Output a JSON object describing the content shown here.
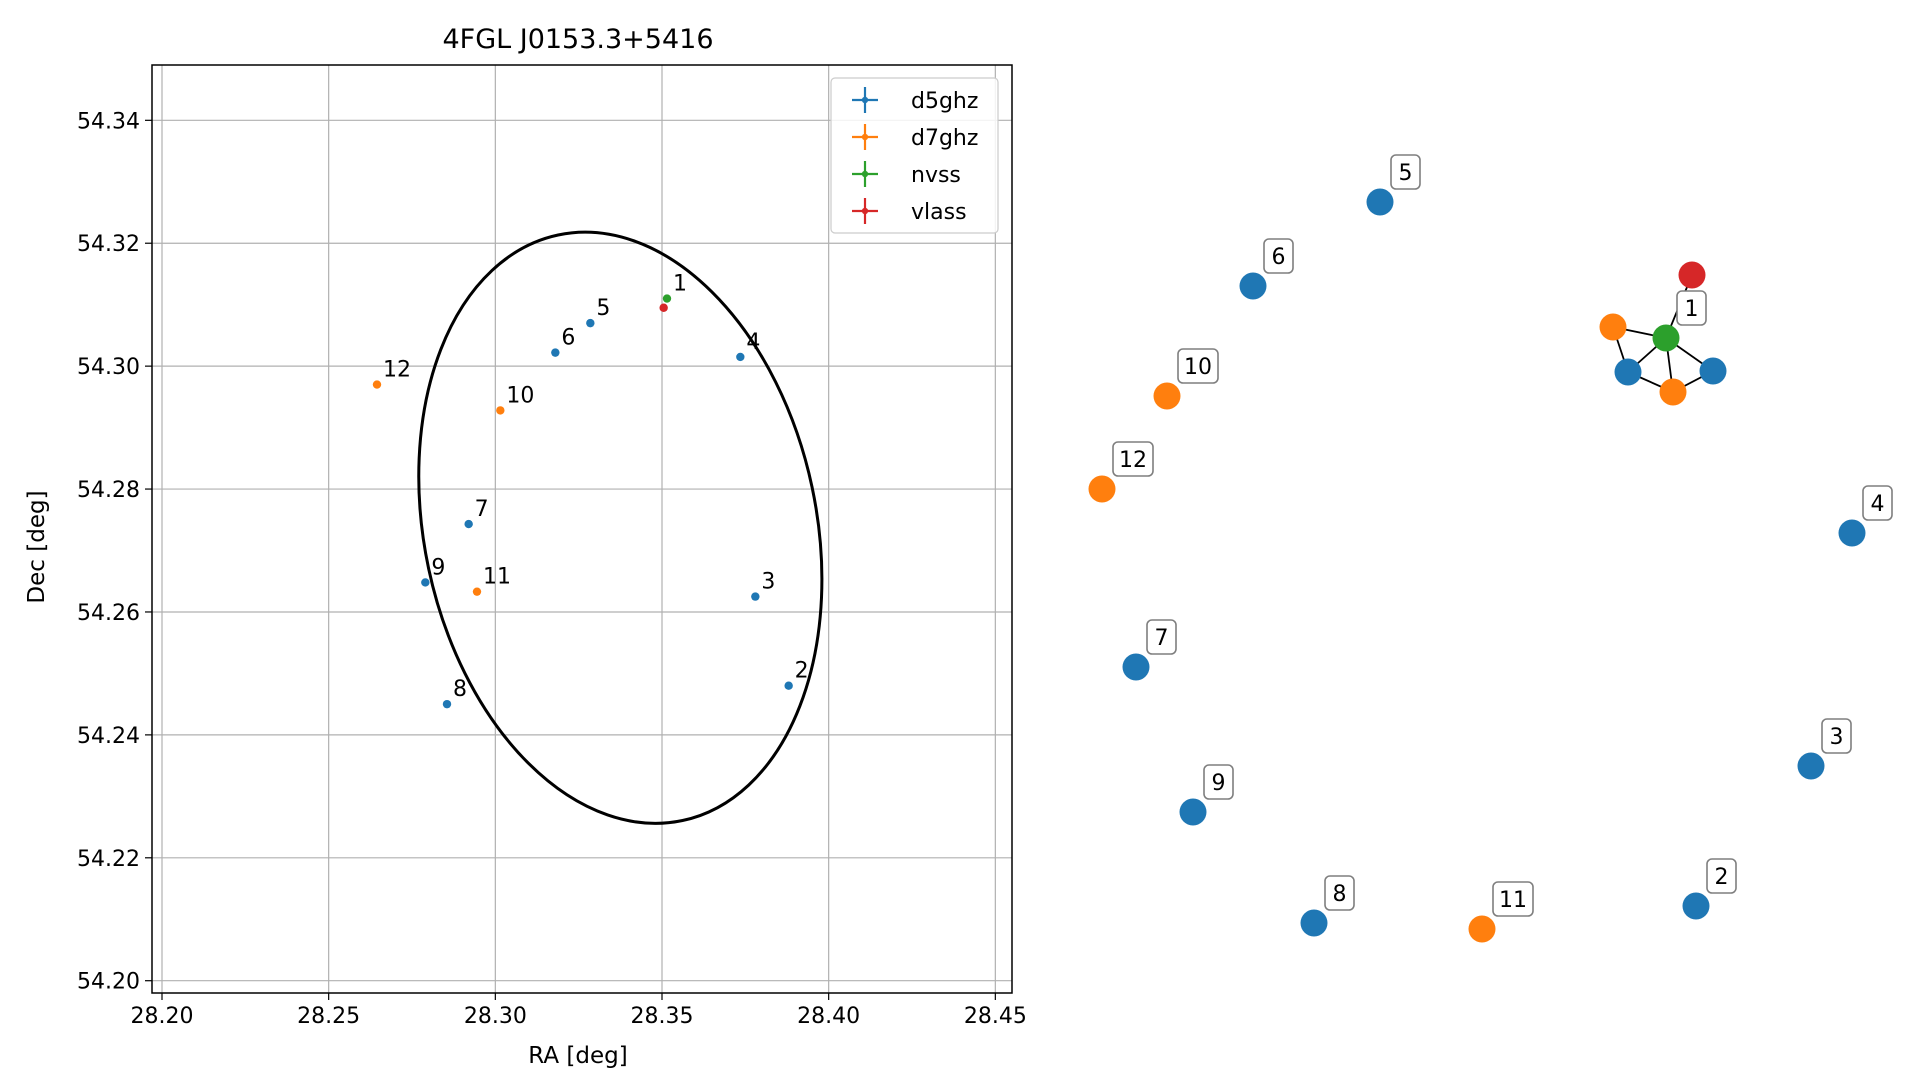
{
  "chart_data": [
    {
      "type": "scatter",
      "title": "4FGL J0153.3+5416",
      "xlabel": "RA [deg]",
      "ylabel": "Dec [deg]",
      "xlim": [
        28.197,
        28.455
      ],
      "ylim": [
        54.198,
        54.349
      ],
      "xticks": [
        28.2,
        28.25,
        28.3,
        28.35,
        28.4,
        28.45
      ],
      "xtick_labels": [
        "28.20",
        "28.25",
        "28.30",
        "28.35",
        "28.40",
        "28.45"
      ],
      "yticks": [
        54.2,
        54.22,
        54.24,
        54.26,
        54.28,
        54.3,
        54.32,
        54.34
      ],
      "ytick_labels": [
        "54.20",
        "54.22",
        "54.24",
        "54.26",
        "54.28",
        "54.30",
        "54.32",
        "54.34"
      ],
      "grid": true,
      "legend_position": "top-right",
      "series": [
        {
          "name": "d5ghz",
          "color": "#1f77b4",
          "points": [
            {
              "label": "2",
              "x": 28.388,
              "y": 54.248
            },
            {
              "label": "3",
              "x": 28.378,
              "y": 54.2625
            },
            {
              "label": "4",
              "x": 28.3735,
              "y": 54.3015
            },
            {
              "label": "5",
              "x": 28.3285,
              "y": 54.307
            },
            {
              "label": "6",
              "x": 28.318,
              "y": 54.3022
            },
            {
              "label": "7",
              "x": 28.292,
              "y": 54.2743
            },
            {
              "label": "8",
              "x": 28.2855,
              "y": 54.245
            },
            {
              "label": "9",
              "x": 28.279,
              "y": 54.2648
            }
          ]
        },
        {
          "name": "d7ghz",
          "color": "#ff7f0e",
          "points": [
            {
              "label": "10",
              "x": 28.3015,
              "y": 54.2928
            },
            {
              "label": "11",
              "x": 28.2945,
              "y": 54.2633
            },
            {
              "label": "12",
              "x": 28.2645,
              "y": 54.297
            }
          ]
        },
        {
          "name": "nvss",
          "color": "#2ca02c",
          "points": [
            {
              "label": "1",
              "x": 28.3515,
              "y": 54.311
            }
          ]
        },
        {
          "name": "vlass",
          "color": "#d62728",
          "points": [
            {
              "x": 28.3505,
              "y": 54.3095
            }
          ]
        }
      ],
      "ellipse": {
        "center_ra": 28.3375,
        "center_dec": 54.2737,
        "semi_axis_ra": 0.0588,
        "semi_axis_dec": 0.0487,
        "color": "#000000"
      }
    },
    {
      "type": "network",
      "nodes": [
        {
          "label": "1",
          "color": "#2ca02c"
        },
        {
          "label": "",
          "color": "#d62728"
        },
        {
          "label": "",
          "color": "#ff7f0e"
        },
        {
          "label": "",
          "color": "#1f77b4"
        },
        {
          "label": "",
          "color": "#ff7f0e"
        },
        {
          "label": "",
          "color": "#1f77b4"
        },
        {
          "label": "2",
          "color": "#1f77b4"
        },
        {
          "label": "3",
          "color": "#1f77b4"
        },
        {
          "label": "4",
          "color": "#1f77b4"
        },
        {
          "label": "5",
          "color": "#1f77b4"
        },
        {
          "label": "6",
          "color": "#1f77b4"
        },
        {
          "label": "7",
          "color": "#1f77b4"
        },
        {
          "label": "8",
          "color": "#1f77b4"
        },
        {
          "label": "9",
          "color": "#1f77b4"
        },
        {
          "label": "10",
          "color": "#ff7f0e"
        },
        {
          "label": "11",
          "color": "#ff7f0e"
        },
        {
          "label": "12",
          "color": "#ff7f0e"
        }
      ],
      "edges": [
        [
          0,
          1
        ],
        [
          0,
          2
        ],
        [
          0,
          3
        ],
        [
          0,
          4
        ],
        [
          0,
          5
        ],
        [
          2,
          3
        ],
        [
          3,
          4
        ],
        [
          4,
          5
        ]
      ]
    }
  ]
}
